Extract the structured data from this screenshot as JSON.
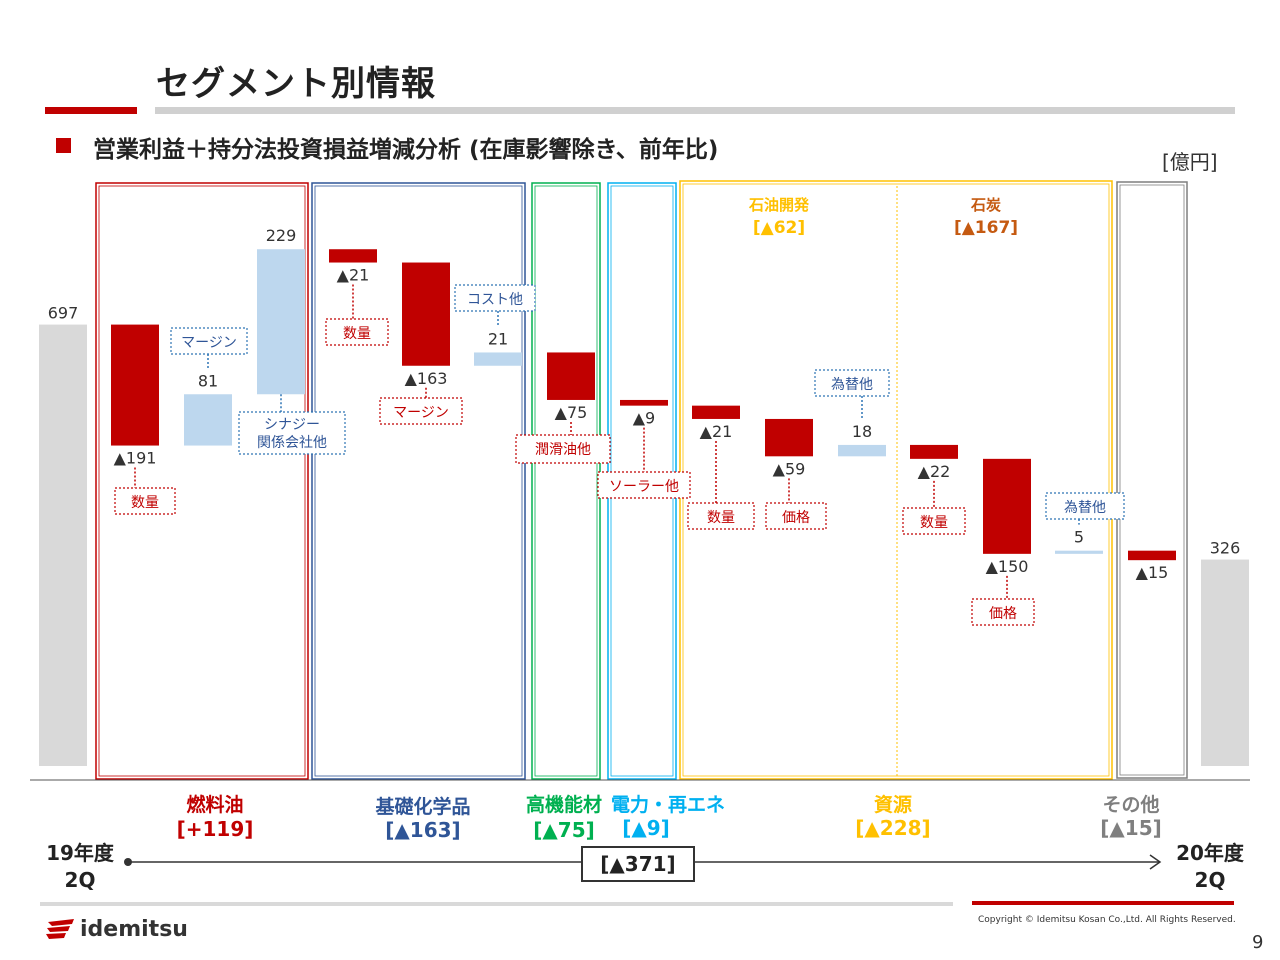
{
  "header": {
    "title": "セグメント別情報",
    "subtitle": "営業利益＋持分法投資損益増減分析 (在庫影響除き、前年比)",
    "unit": "[億円]"
  },
  "colors": {
    "decrease": "#c00000",
    "increase": "#bdd7ee",
    "endpoint": "#d9d9d9",
    "fuel_oil": "#c00000",
    "basic_chemicals": "#2f5597",
    "functional_materials": "#00b050",
    "power_renewable": "#00b0f0",
    "resources": "#ffc000",
    "coal_label": "#c55a11",
    "others": "#7f7f7f"
  },
  "chart_data": {
    "type": "waterfall",
    "start": {
      "label": "19年度 2Q",
      "value": 697
    },
    "end": {
      "label": "20年度 2Q",
      "value": 326
    },
    "steps": [
      {
        "segment": "燃料油",
        "category": "数量",
        "delta": -191,
        "label": "▲191"
      },
      {
        "segment": "燃料油",
        "category": "マージン",
        "delta": 81,
        "label": "81"
      },
      {
        "segment": "燃料油",
        "category": "シナジー 関係会社他",
        "delta": 229,
        "label": "229"
      },
      {
        "segment": "基礎化学品",
        "category": "数量",
        "delta": -21,
        "label": "▲21"
      },
      {
        "segment": "基礎化学品",
        "category": "マージン",
        "delta": -163,
        "label": "▲163"
      },
      {
        "segment": "基礎化学品",
        "category": "コスト他",
        "delta": 21,
        "label": "21"
      },
      {
        "segment": "高機能材",
        "category": "潤滑油他",
        "delta": -75,
        "label": "▲75"
      },
      {
        "segment": "電力・再エネ",
        "category": "ソーラー他",
        "delta": -9,
        "label": "▲9"
      },
      {
        "segment": "資源/石油開発",
        "category": "数量",
        "delta": -21,
        "label": "▲21"
      },
      {
        "segment": "資源/石油開発",
        "category": "価格",
        "delta": -59,
        "label": "▲59"
      },
      {
        "segment": "資源/石油開発",
        "category": "為替他",
        "delta": 18,
        "label": "18"
      },
      {
        "segment": "資源/石炭",
        "category": "数量",
        "delta": -22,
        "label": "▲22"
      },
      {
        "segment": "資源/石炭",
        "category": "価格",
        "delta": -150,
        "label": "▲150"
      },
      {
        "segment": "資源/石炭",
        "category": "為替他",
        "delta": 5,
        "label": "5"
      },
      {
        "segment": "その他",
        "category": "",
        "delta": -15,
        "label": "▲15"
      }
    ],
    "segments": [
      {
        "name": "燃料油",
        "total": "[+119]"
      },
      {
        "name": "基礎化学品",
        "total": "[▲163]"
      },
      {
        "name": "高機能材",
        "total": "[▲75]"
      },
      {
        "name": "電力・再エネ",
        "total": "[▲9]"
      },
      {
        "name": "資源",
        "total": "[▲228]"
      },
      {
        "name": "その他",
        "total": "[▲15]"
      }
    ],
    "sub_segments": [
      {
        "name": "石油開発",
        "total": "[▲62]"
      },
      {
        "name": "石炭",
        "total": "[▲167]"
      }
    ],
    "total_change": "[▲371]"
  },
  "axis": {
    "start_label": "19年度\n2Q",
    "end_label": "20年度\n2Q"
  },
  "footer": {
    "logo": "idemitsu",
    "copyright": "Copyright © Idemitsu Kosan Co.,Ltd.  All Rights Reserved.",
    "page": "9"
  }
}
